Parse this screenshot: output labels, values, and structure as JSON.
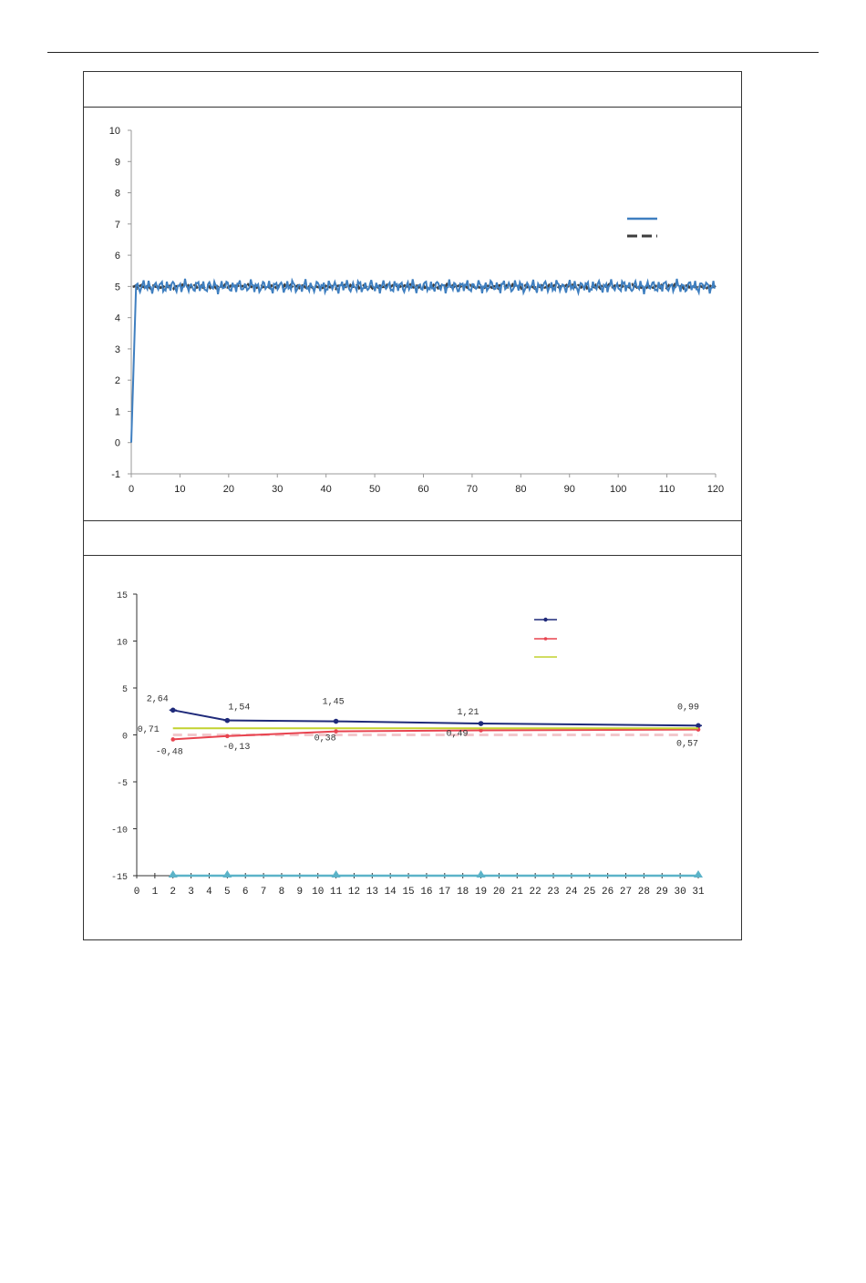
{
  "page": {
    "header_rule": true
  },
  "table": {
    "caption_top": "",
    "caption_middle": ""
  },
  "chart_data": [
    {
      "type": "line",
      "title": "",
      "xlabel": "",
      "ylabel": "",
      "xlim": [
        0,
        120
      ],
      "ylim": [
        -1,
        10
      ],
      "x_ticks": [
        "0",
        "10",
        "20",
        "30",
        "40",
        "50",
        "60",
        "70",
        "80",
        "90",
        "100",
        "110",
        "120"
      ],
      "y_ticks": [
        "-1",
        "0",
        "1",
        "2",
        "3",
        "4",
        "5",
        "6",
        "7",
        "8",
        "9",
        "10"
      ],
      "legend_position": "top-right",
      "grid": false,
      "colors": {
        "series_1": "#3f7fc0",
        "series_2": "#3d3d3d"
      },
      "series": [
        {
          "style": "solid",
          "description_values": "rises from 0 at x=0 to about 5 at x=1, then fluctuates around 5 (range ~4.8 to ~5.3) up to x=120",
          "start": [
            [
              0,
              0
            ],
            [
              1,
              5.05
            ]
          ],
          "level": 5.0,
          "amplitude": 0.25
        },
        {
          "style": "dashed",
          "level": 5.0,
          "amplitude": 0.07
        }
      ]
    },
    {
      "type": "line",
      "title": "",
      "xlabel": "",
      "ylabel": "",
      "xlim": [
        0,
        31
      ],
      "ylim": [
        -15,
        15
      ],
      "x_ticks": [
        "0",
        "1",
        "2",
        "3",
        "4",
        "5",
        "6",
        "7",
        "8",
        "9",
        "10",
        "11",
        "12",
        "13",
        "14",
        "15",
        "16",
        "17",
        "18",
        "19",
        "20",
        "21",
        "22",
        "23",
        "24",
        "25",
        "26",
        "27",
        "28",
        "29",
        "30",
        "31"
      ],
      "y_ticks": [
        "15",
        "10",
        "5",
        "0",
        "-5",
        "-10",
        "-15"
      ],
      "legend_position": "top-right",
      "grid": false,
      "colors": {
        "series_1": "#1f2a7a",
        "series_2": "#e8434f",
        "series_3": "#c2d22f",
        "series_4": "#5bb3c8",
        "reference": "#f2c8cc"
      },
      "x": [
        2,
        5,
        11,
        19,
        31
      ],
      "series": [
        {
          "marker": "plus",
          "values": [
            2.64,
            1.54,
            1.45,
            1.21,
            0.99
          ],
          "labels": [
            "2,64",
            "1,54",
            "1,45",
            "1,21",
            "0,99"
          ]
        },
        {
          "marker": "dot",
          "values": [
            -0.48,
            -0.13,
            0.38,
            0.49,
            0.57
          ],
          "labels": [
            "-0,48",
            "-0,13",
            "0,38",
            "0,49",
            "0,57"
          ]
        },
        {
          "marker": "none",
          "values": [
            0.71,
            0.71,
            0.71,
            0.71,
            0.71
          ],
          "labels": [
            "0,71"
          ]
        },
        {
          "marker": "triangle",
          "values": [
            -15,
            -15,
            -15,
            -15,
            -15
          ]
        }
      ],
      "reference_line": {
        "y": 0,
        "style": "dashed"
      }
    }
  ]
}
